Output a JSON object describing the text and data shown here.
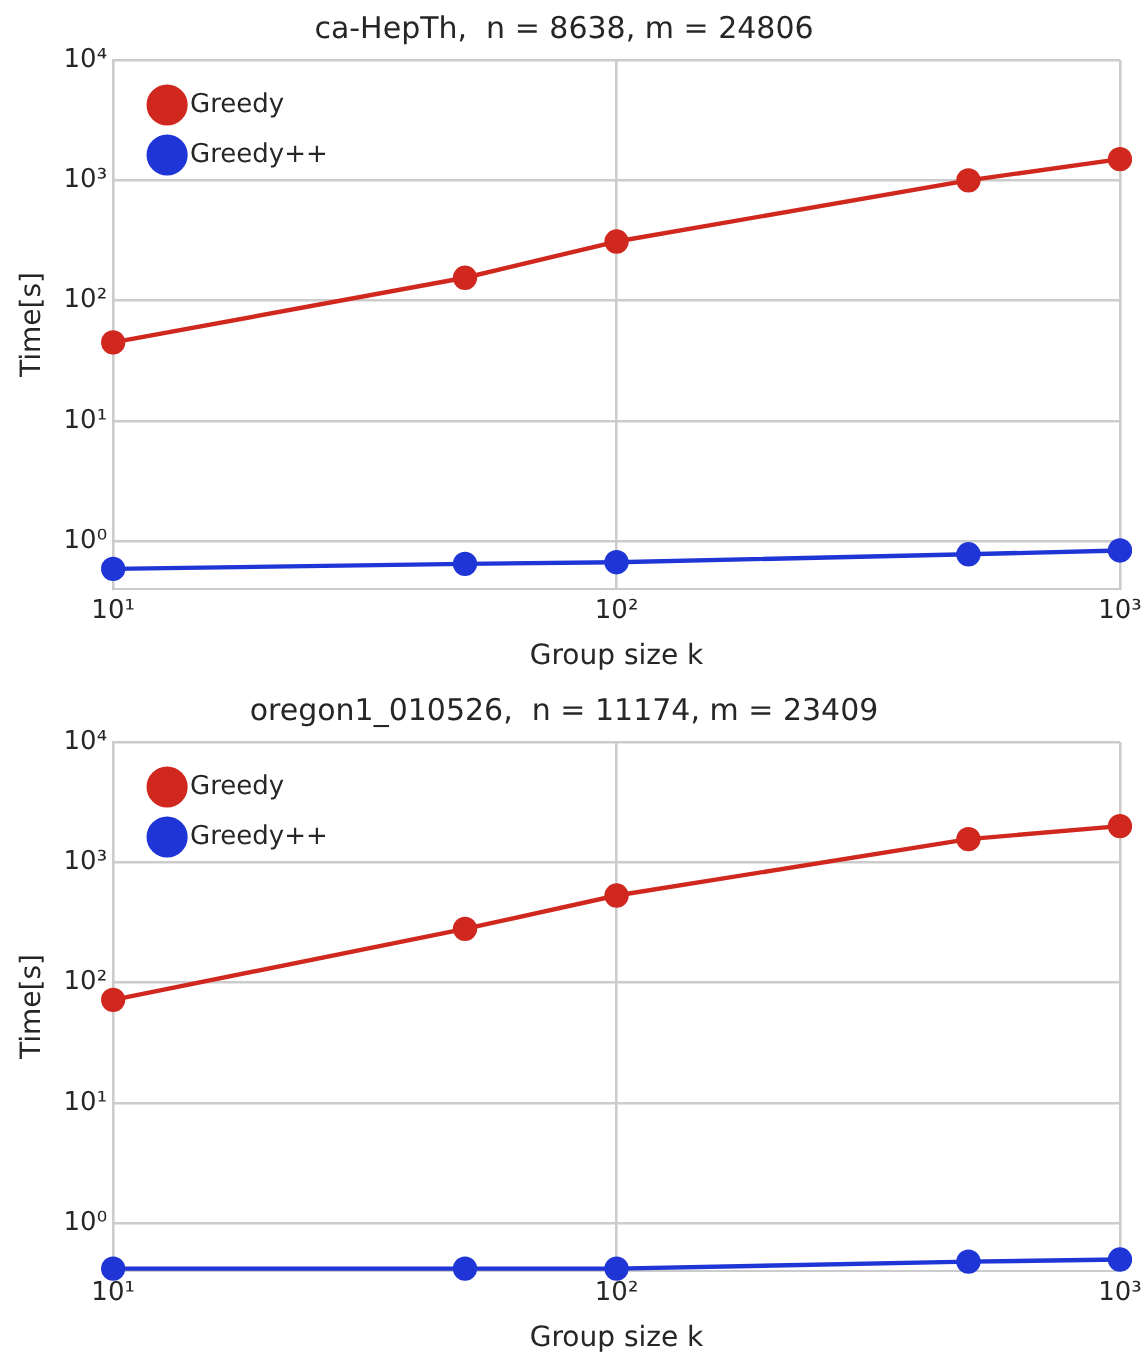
{
  "chart_data": [
    {
      "type": "line",
      "title": "ca-HepTh,  n = 8638, m = 24806",
      "xlabel": "Group size k",
      "ylabel": "Time[s]",
      "x": [
        10,
        50,
        100,
        500,
        1000
      ],
      "series": [
        {
          "name": "Greedy",
          "color": "#d0281e",
          "values": [
            45,
            155,
            310,
            1000,
            1500
          ]
        },
        {
          "name": "Greedy++",
          "color": "#1f35d6",
          "values": [
            0.59,
            0.65,
            0.67,
            0.78,
            0.84
          ]
        }
      ],
      "log": "xy",
      "xlim": [
        10,
        1000
      ],
      "xticks": [
        {
          "value": 10,
          "label": "10¹"
        },
        {
          "value": 100,
          "label": "10²"
        },
        {
          "value": 1000,
          "label": "10³"
        }
      ],
      "ylim": [
        0.4,
        10000
      ],
      "yticks": [
        {
          "value": 1,
          "label": "10⁰"
        },
        {
          "value": 10,
          "label": "10¹"
        },
        {
          "value": 100,
          "label": "10²"
        },
        {
          "value": 1000,
          "label": "10³"
        },
        {
          "value": 10000,
          "label": "10⁴"
        }
      ],
      "grid": true,
      "legend": "top left",
      "marker": "circle",
      "line_style": "solid"
    },
    {
      "type": "line",
      "title": "oregon1_010526,  n = 11174, m = 23409",
      "xlabel": "Group size k",
      "ylabel": "Time[s]",
      "x": [
        10,
        50,
        100,
        500,
        1000
      ],
      "series": [
        {
          "name": "Greedy",
          "color": "#d0281e",
          "values": [
            72,
            280,
            530,
            1560,
            2000
          ]
        },
        {
          "name": "Greedy++",
          "color": "#1f35d6",
          "values": [
            0.42,
            0.42,
            0.42,
            0.48,
            0.5
          ]
        }
      ],
      "log": "xy",
      "xlim": [
        10,
        1000
      ],
      "xticks": [
        {
          "value": 10,
          "label": "10¹"
        },
        {
          "value": 100,
          "label": "10²"
        },
        {
          "value": 1000,
          "label": "10³"
        }
      ],
      "ylim": [
        0.4,
        10000
      ],
      "yticks": [
        {
          "value": 1,
          "label": "10⁰"
        },
        {
          "value": 10,
          "label": "10¹"
        },
        {
          "value": 100,
          "label": "10²"
        },
        {
          "value": 1000,
          "label": "10³"
        },
        {
          "value": 10000,
          "label": "10⁴"
        }
      ],
      "grid": true,
      "legend": "top left",
      "marker": "circle",
      "line_style": "solid"
    }
  ]
}
